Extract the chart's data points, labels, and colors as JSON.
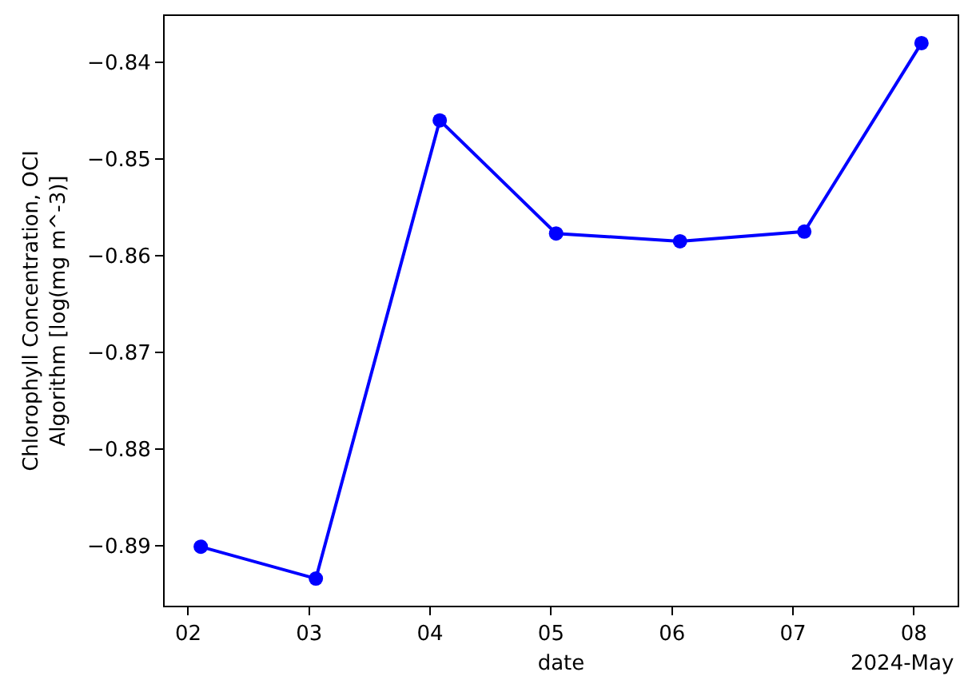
{
  "chart_data": {
    "type": "line",
    "xlabel": "date",
    "ylabel": "Chlorophyll Concentration, OCI Algorithm [log(mg m^-3)]",
    "annotations": [
      "2024-May"
    ],
    "x": [
      "2024-05-02T02:30",
      "2024-05-03T01:20",
      "2024-05-04T01:55",
      "2024-05-05T01:00",
      "2024-05-06T01:35",
      "2024-05-07T02:15",
      "2024-05-08T01:30"
    ],
    "values": [
      -0.8901,
      -0.8934,
      -0.846,
      -0.8577,
      -0.8585,
      -0.8575,
      -0.838
    ],
    "color": "#0000ff",
    "marker": "circle",
    "line_style": "solid",
    "xlim": [
      "2024-05-01T19:20",
      "2024-05-08T08:40"
    ],
    "xticks": [
      {
        "value": "2024-05-02",
        "label": "02"
      },
      {
        "value": "2024-05-03",
        "label": "03"
      },
      {
        "value": "2024-05-04",
        "label": "04"
      },
      {
        "value": "2024-05-05",
        "label": "05"
      },
      {
        "value": "2024-05-06",
        "label": "06"
      },
      {
        "value": "2024-05-07",
        "label": "07"
      },
      {
        "value": "2024-05-08",
        "label": "08"
      }
    ],
    "ylim": [
      -0.8962,
      -0.8352
    ],
    "yticks": [
      -0.89,
      -0.88,
      -0.87,
      -0.86,
      -0.85,
      -0.84
    ]
  }
}
